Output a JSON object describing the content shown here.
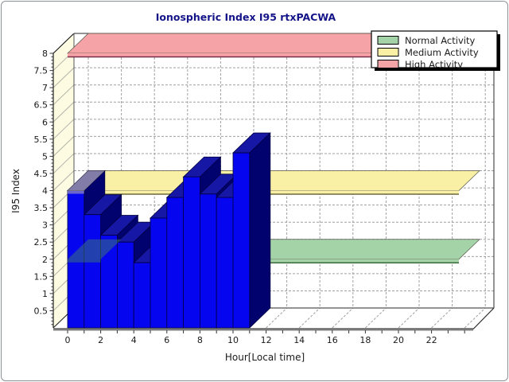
{
  "window": {
    "background": "#ffffff",
    "border_color": "#8a8f98"
  },
  "chart_data": {
    "type": "bar",
    "projection": "3d-oblique",
    "title": "Ionospheric Index I95 rtxPACWA",
    "title_color": "#15158a",
    "xlabel": "Hour[Local time]",
    "ylabel": "I95 Index",
    "categories_hours": [
      0,
      1,
      2,
      3,
      4,
      5,
      6,
      7,
      8,
      9,
      10
    ],
    "values": [
      4.0,
      3.3,
      2.7,
      2.5,
      1.9,
      3.2,
      3.8,
      4.4,
      3.9,
      3.8,
      5.1
    ],
    "bar_color_front": "#0505ef",
    "bar_color_top": "#1717a6",
    "bar_color_side": "#02026f",
    "xlim": [
      0,
      24.5
    ],
    "ylim": [
      0,
      8
    ],
    "x_tick_labels": [
      "0",
      "2",
      "4",
      "6",
      "8",
      "10",
      "12",
      "14",
      "16",
      "18",
      "20",
      "22"
    ],
    "x_tick_step_labeled": 2,
    "x_tick_step_minor": 1,
    "y_tick_labels": [
      "0.5",
      "1",
      "1.5",
      "2",
      "2.5",
      "3",
      "3.5",
      "4",
      "4.5",
      "5",
      "5.5",
      "6",
      "6.5",
      "7",
      "7.5",
      "8"
    ],
    "y_tick_step": 0.5,
    "y_minor_tick_step": 0.1,
    "grid": "dashed",
    "grid_color": "#a0a0a0",
    "wall_color": "#fdfce2",
    "bands": [
      {
        "label": "Normal Activity",
        "level": 2,
        "color": "#a5d3a8",
        "edge": "#3a6b3a"
      },
      {
        "label": "Medium Activity",
        "level": 4,
        "color": "#faf0a5",
        "edge": "#6b6b3a"
      },
      {
        "label": "High Activity",
        "level": 8,
        "color": "#f5a3a6",
        "edge": "#7c2c4a"
      }
    ],
    "legend_position": "top-right"
  },
  "legend": {
    "items": [
      {
        "label": "Normal Activity",
        "color": "#a5d3a8"
      },
      {
        "label": "Medium Activity",
        "color": "#faf0a5"
      },
      {
        "label": "High Activity",
        "color": "#f5a3a6"
      }
    ]
  }
}
